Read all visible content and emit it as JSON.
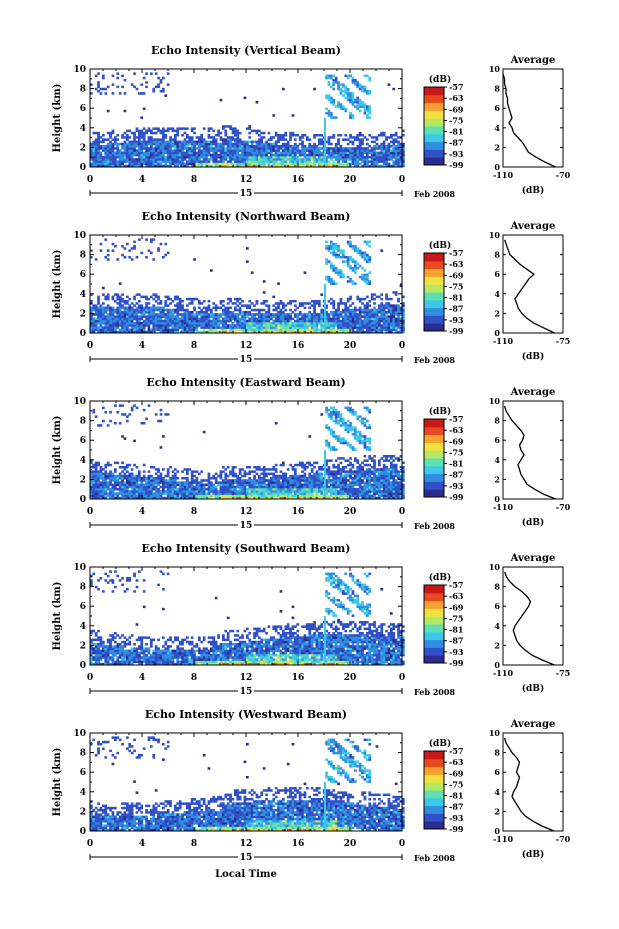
{
  "chart_data": {
    "type": "heatmap",
    "x_axis_label": "Local Time",
    "date_label": "Feb 2008",
    "day_label": "15",
    "x_ticks": [
      "0",
      "4",
      "8",
      "12",
      "16",
      "20",
      "0"
    ],
    "x_range_hours": [
      0,
      24
    ],
    "y_axis_label": "Height (km)",
    "y_ticks": [
      "0",
      "2",
      "4",
      "6",
      "8",
      "10"
    ],
    "y_range_km": [
      0,
      10
    ],
    "colorbar": {
      "title": "(dB)",
      "ticks": [
        "-57",
        "-63",
        "-69",
        "-75",
        "-81",
        "-87",
        "-93",
        "-99"
      ],
      "range_db": [
        -99,
        -57
      ],
      "colors": [
        "#2a2d8f",
        "#3050c8",
        "#2f8ee0",
        "#3cc8e8",
        "#5fe0b0",
        "#b8e860",
        "#f0e040",
        "#f8a030",
        "#e84a20",
        "#c81818"
      ]
    },
    "profile_title": "Average",
    "profile_xlabel": "(dB)",
    "panels": [
      {
        "title": "Echo Intensity (Vertical Beam)",
        "profile_x_ticks": [
          "-110",
          "-70"
        ],
        "profile_x_range": [
          -110,
          -70
        ],
        "profile_km": [
          0,
          0.5,
          1,
          1.5,
          2,
          2.5,
          3,
          3.5,
          4,
          4.5,
          5,
          5.5,
          6,
          6.5,
          7,
          7.5,
          8,
          8.5,
          9,
          9.5
        ],
        "profile_db": [
          -75,
          -82,
          -88,
          -93,
          -95,
          -97,
          -100,
          -103,
          -104,
          -106,
          -104,
          -105,
          -106,
          -107,
          -107,
          -108,
          -108,
          -109,
          -109,
          -110
        ]
      },
      {
        "title": "Echo Intensity (Northward Beam)",
        "profile_x_ticks": [
          "-110",
          "-75"
        ],
        "profile_x_range": [
          -110,
          -75
        ],
        "profile_km": [
          0,
          0.5,
          1,
          1.5,
          2,
          2.5,
          3,
          3.5,
          4,
          4.5,
          5,
          5.5,
          6,
          6.5,
          7,
          7.5,
          8,
          8.5,
          9,
          9.5
        ],
        "profile_db": [
          -80,
          -86,
          -92,
          -96,
          -99,
          -101,
          -102,
          -103,
          -101,
          -99,
          -97,
          -95,
          -92,
          -96,
          -100,
          -103,
          -106,
          -107,
          -108,
          -109
        ]
      },
      {
        "title": "Echo Intensity (Eastward Beam)",
        "profile_x_ticks": [
          "-110",
          "-70"
        ],
        "profile_x_range": [
          -110,
          -70
        ],
        "profile_km": [
          0,
          0.5,
          1,
          1.5,
          2,
          2.5,
          3,
          3.5,
          4,
          4.5,
          5,
          5.5,
          6,
          6.5,
          7,
          7.5,
          8,
          8.5,
          9,
          9.5
        ],
        "profile_db": [
          -75,
          -83,
          -89,
          -94,
          -96,
          -98,
          -99,
          -100,
          -98,
          -96,
          -98,
          -99,
          -97,
          -96,
          -98,
          -101,
          -104,
          -106,
          -108,
          -109
        ]
      },
      {
        "title": "Echo Intensity (Southward Beam)",
        "profile_x_ticks": [
          "-110",
          "-75"
        ],
        "profile_x_range": [
          -110,
          -75
        ],
        "profile_km": [
          0,
          0.5,
          1,
          1.5,
          2,
          2.5,
          3,
          3.5,
          4,
          4.5,
          5,
          5.5,
          6,
          6.5,
          7,
          7.5,
          8,
          8.5,
          9,
          9.5
        ],
        "profile_db": [
          -80,
          -87,
          -93,
          -97,
          -100,
          -102,
          -103,
          -104,
          -103,
          -101,
          -99,
          -97,
          -95,
          -94,
          -96,
          -99,
          -103,
          -106,
          -108,
          -109
        ]
      },
      {
        "title": "Echo Intensity (Westward Beam)",
        "profile_x_ticks": [
          "-110",
          "-70"
        ],
        "profile_x_range": [
          -110,
          -70
        ],
        "profile_km": [
          0,
          0.5,
          1,
          1.5,
          2,
          2.5,
          3,
          3.5,
          4,
          4.5,
          5,
          5.5,
          6,
          6.5,
          7,
          7.5,
          8,
          8.5,
          9,
          9.5
        ],
        "profile_db": [
          -76,
          -84,
          -90,
          -95,
          -98,
          -100,
          -102,
          -104,
          -103,
          -101,
          -100,
          -99,
          -101,
          -100,
          -99,
          -101,
          -104,
          -106,
          -108,
          -109
        ]
      }
    ]
  }
}
